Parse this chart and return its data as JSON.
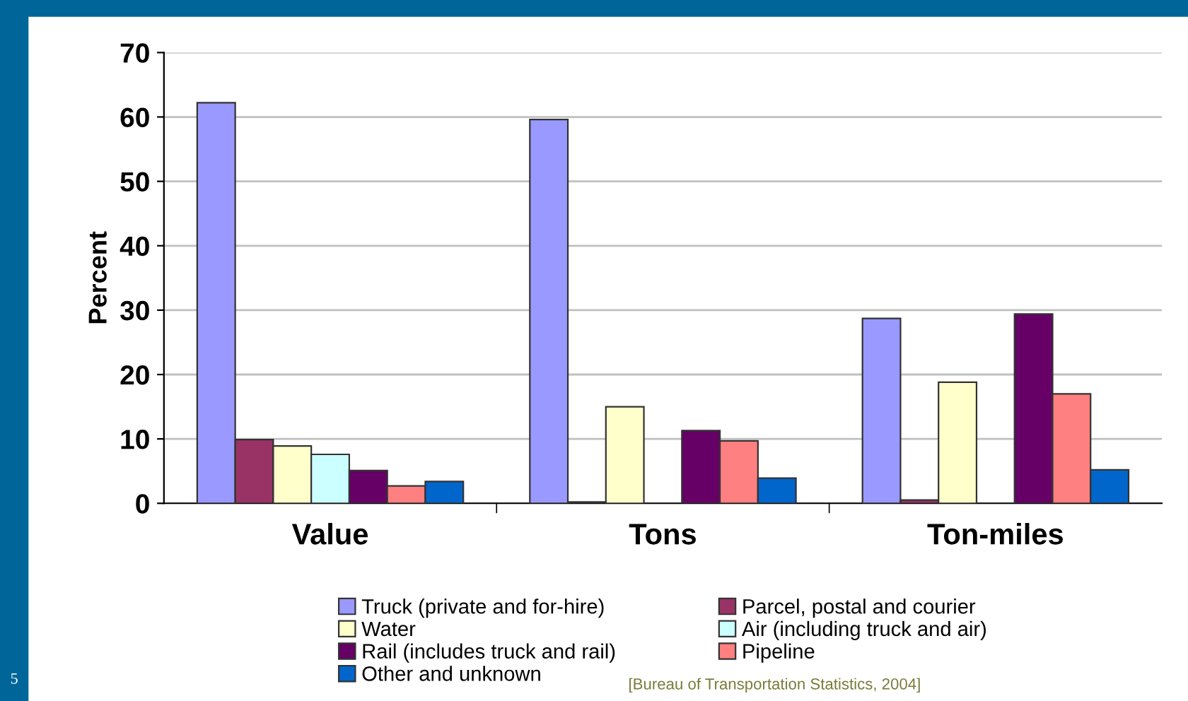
{
  "chart_data": {
    "type": "bar",
    "ylabel": "Percent",
    "categories": [
      "Value",
      "Tons",
      "Ton-miles"
    ],
    "series": [
      {
        "name": "Truck (private and for-hire)",
        "color": "#9999ff",
        "values": [
          62.2,
          59.6,
          28.7
        ]
      },
      {
        "name": "Parcel, postal and courier",
        "color": "#993366",
        "values": [
          9.9,
          0.2,
          0.5
        ]
      },
      {
        "name": "Water",
        "color": "#ffffcc",
        "values": [
          8.9,
          15.0,
          18.8
        ]
      },
      {
        "name": "Air (including truck and air)",
        "color": "#ccffff",
        "values": [
          7.6,
          null,
          null
        ]
      },
      {
        "name": "Rail (includes truck and rail)",
        "color": "#660066",
        "values": [
          5.1,
          11.3,
          29.4
        ]
      },
      {
        "name": "Pipeline",
        "color": "#ff8080",
        "values": [
          2.7,
          9.7,
          17.0
        ]
      },
      {
        "name": "Other and unknown",
        "color": "#0066cc",
        "values": [
          3.4,
          3.9,
          5.2
        ]
      }
    ],
    "ylim": [
      0,
      70
    ],
    "yticks": [
      0,
      10,
      20,
      30,
      40,
      50,
      60,
      70
    ],
    "grid": "y",
    "legend": "bottom",
    "annotations": [
      "[Bureau of Transportation Statistics, 2004]",
      "5"
    ]
  }
}
